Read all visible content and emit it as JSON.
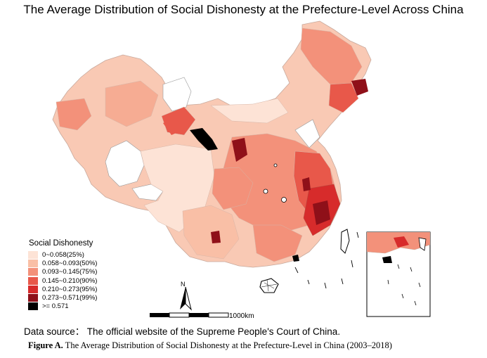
{
  "title": "The Average Distribution of Social Dishonesty at the Prefecture-Level Across China",
  "legend": {
    "title": "Social Dishonesty",
    "items": [
      {
        "label": "0~0.058(25%)",
        "color": "#fde3d6"
      },
      {
        "label": "0.058~0.093(50%)",
        "color": "#f9bfa6"
      },
      {
        "label": "0.093~0.145(75%)",
        "color": "#f3917a"
      },
      {
        "label": "0.145~0.210(90%)",
        "color": "#e8584a"
      },
      {
        "label": "0.210~0.273(95%)",
        "color": "#d72b2b"
      },
      {
        "label": "0.273~0.571(99%)",
        "color": "#8f1019"
      },
      {
        "label": ">= 0.571",
        "color": "#000000"
      }
    ]
  },
  "scale_bar": {
    "label": "1000km"
  },
  "north_arrow": {
    "label": "N"
  },
  "source": "Data source： The official website of the Supreme People's Court of China.",
  "caption": {
    "prefix": "Figure A.",
    "text": " The Average Distribution of Social Dishonesty at the Prefecture-Level in China (2003–2018)"
  }
}
